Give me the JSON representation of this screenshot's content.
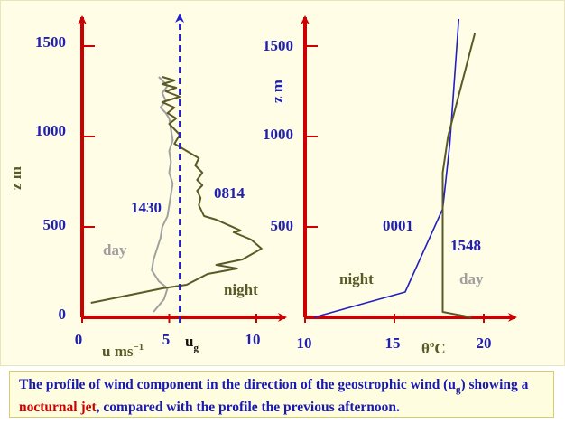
{
  "colors": {
    "axis": "#cc0000",
    "tick_text": "#2020b0",
    "day": "#a0a0a0",
    "night": "#5a5a28",
    "ug": "#2020d0",
    "theta_night": "#2020c0",
    "theta_day": "#5a5a28",
    "caption_text": "#1a1ab0",
    "caption_highlight": "#cc0000"
  },
  "caption": {
    "part1": "The profile of wind component in the direction of the geostrophic wind (u",
    "sub": "g",
    "part2": ") showing a ",
    "highlight": "nocturnal jet",
    "part3": ", compared with the profile the previous afternoon."
  },
  "chart_data": [
    {
      "type": "line",
      "xlabel": "u ms",
      "xlabel_sup": "−1",
      "ylabel": "z m",
      "xlim": [
        0,
        11
      ],
      "ylim": [
        0,
        1700
      ],
      "xticks": [
        "0",
        "5",
        "10"
      ],
      "xtick_values": [
        0,
        5,
        10
      ],
      "yticks": [
        "0",
        "500",
        "1000",
        "1500"
      ],
      "ytick_values": [
        0,
        500,
        1000,
        1500
      ],
      "ug_label": "u",
      "ug_label_sub": "g",
      "ug_value": 5.6,
      "series": [
        {
          "name": "1430",
          "label": "day",
          "x": [
            4.1,
            4.7,
            4.9,
            4.4,
            4.0,
            4.1,
            4.3,
            4.5,
            4.6,
            4.9,
            5.0,
            5.1,
            5.2,
            5.0,
            5.1,
            5.0,
            5.2,
            5.1,
            5.0,
            4.8,
            4.5,
            4.8,
            4.6,
            4.9,
            4.4
          ],
          "y": [
            30,
            100,
            160,
            200,
            260,
            320,
            380,
            440,
            500,
            560,
            620,
            680,
            740,
            800,
            860,
            920,
            980,
            1040,
            1100,
            1130,
            1160,
            1200,
            1240,
            1280,
            1330
          ]
        },
        {
          "name": "0814",
          "label": "night",
          "x": [
            0.5,
            4.6,
            6.0,
            7.2,
            8.9,
            7.7,
            9.2,
            10.3,
            9.7,
            8.7,
            9.1,
            7.7,
            7.0,
            6.7,
            6.8,
            6.6,
            6.9,
            6.6,
            6.9,
            6.5,
            6.7,
            5.3,
            5.6,
            5.0,
            5.4,
            4.9,
            5.3,
            4.6,
            5.6,
            4.8,
            5.4,
            4.6,
            5.3,
            4.6
          ],
          "y": [
            80,
            160,
            180,
            240,
            270,
            290,
            320,
            380,
            430,
            470,
            480,
            540,
            560,
            620,
            660,
            700,
            730,
            760,
            800,
            840,
            880,
            960,
            1010,
            1070,
            1100,
            1130,
            1160,
            1190,
            1220,
            1250,
            1270,
            1290,
            1310,
            1330
          ]
        }
      ]
    },
    {
      "type": "line",
      "xlabel": "θ",
      "xlabel_sup": "o",
      "xlabel_tail": "C",
      "ylabel": "z m",
      "xlim": [
        10,
        21.5
      ],
      "ylim": [
        0,
        1700
      ],
      "xticks": [
        "10",
        "15",
        "20"
      ],
      "xtick_values": [
        10,
        15,
        20
      ],
      "yticks": [
        "500",
        "1000",
        "1500"
      ],
      "ytick_values": [
        500,
        1000,
        1500
      ],
      "series": [
        {
          "name": "0001",
          "label": "night",
          "x": [
            10.5,
            15.6,
            17.7,
            18.1,
            18.6
          ],
          "y": [
            0,
            140,
            600,
            960,
            1650
          ]
        },
        {
          "name": "1548",
          "label": "day",
          "x": [
            19.3,
            17.7,
            17.7,
            18.0,
            19.5
          ],
          "y": [
            0,
            30,
            800,
            1000,
            1570
          ]
        }
      ]
    }
  ]
}
